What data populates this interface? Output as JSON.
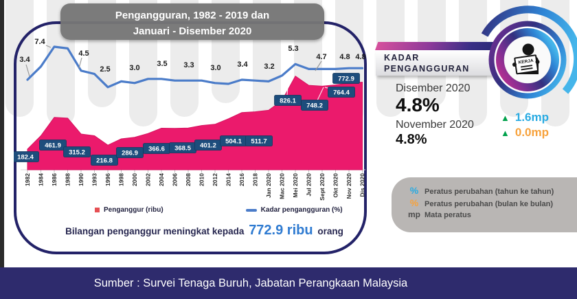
{
  "page": {
    "title_banner": {
      "line1": "Pengangguran, 1982 - 2019 dan",
      "line2": "Januari - Disember 2020"
    },
    "source_bar": "Sumber : Survei Tenaga Buruh, Jabatan Perangkaan Malaysia"
  },
  "chart_data": {
    "type": "combo",
    "subtypes": [
      "area",
      "line"
    ],
    "categories": [
      "1982",
      "1984",
      "1986",
      "1988",
      "1990",
      "1993",
      "1996",
      "1998",
      "2000",
      "2002",
      "2004",
      "2006",
      "2008",
      "2010",
      "2012",
      "2014",
      "2016",
      "2018",
      "Jan 2020",
      "Mac 2020",
      "Mei 2020",
      "Jul 2020",
      "Sept 2020",
      "Okt 2020",
      "Nov 2020",
      "Dis 2020"
    ],
    "series": [
      {
        "name": "Penganggur (ribu)",
        "type": "area",
        "color": "#eb1a6c",
        "values": [
          182.4,
          300,
          461.9,
          455,
          315.2,
          300,
          216.8,
          273,
          286.9,
          320,
          366.6,
          365,
          368.5,
          390,
          401.2,
          450,
          504.1,
          511.7,
          525,
          610,
          826.1,
          745,
          737,
          748.2,
          764.4,
          772.9
        ]
      },
      {
        "name": "Kadar pengangguran (%)",
        "type": "line",
        "color": "#4b7cc9",
        "values": [
          3.4,
          5.0,
          7.4,
          7.2,
          4.5,
          4.1,
          2.5,
          3.2,
          3.0,
          3.5,
          3.5,
          3.3,
          3.3,
          3.3,
          3.0,
          2.9,
          3.4,
          3.3,
          3.2,
          3.9,
          5.3,
          4.7,
          4.7,
          4.7,
          4.8,
          4.8
        ]
      }
    ],
    "area_labels": [
      {
        "i": 0,
        "text": "182.4"
      },
      {
        "i": 2,
        "text": "461.9"
      },
      {
        "i": 4,
        "text": "315.2"
      },
      {
        "i": 6,
        "text": "216.8"
      },
      {
        "i": 8,
        "text": "286.9"
      },
      {
        "i": 10,
        "text": "366.6"
      },
      {
        "i": 12,
        "text": "368.5"
      },
      {
        "i": 14,
        "text": "401.2"
      },
      {
        "i": 16,
        "text": "504.1"
      },
      {
        "i": 17,
        "text": "511.7"
      },
      {
        "i": 20,
        "text": "826.1"
      },
      {
        "i": 23,
        "text": "748.2"
      },
      {
        "i": 24,
        "text": "764.4"
      },
      {
        "i": 25,
        "text": "772.9"
      }
    ],
    "rate_labels": [
      {
        "i": 0,
        "text": "3.4"
      },
      {
        "i": 2,
        "text": "7.4"
      },
      {
        "i": 4,
        "text": "4.5"
      },
      {
        "i": 6,
        "text": "2.5"
      },
      {
        "i": 8,
        "text": "3.0"
      },
      {
        "i": 10,
        "text": "3.5"
      },
      {
        "i": 12,
        "text": "3.3"
      },
      {
        "i": 14,
        "text": "3.0"
      },
      {
        "i": 16,
        "text": "3.4"
      },
      {
        "i": 18,
        "text": "3.2"
      },
      {
        "i": 20,
        "text": "5.3"
      },
      {
        "i": 22,
        "text": "4.7"
      },
      {
        "i": 24,
        "text": "4.8"
      },
      {
        "i": 25,
        "text": "4.8"
      }
    ],
    "legend_position": "bottom",
    "grid": false,
    "y_axes_hidden": true
  },
  "chart_footer": {
    "prefix": "Bilangan penganggur meningkat kepada",
    "highlight": "772.9 ribu",
    "suffix": "orang"
  },
  "right_panel": {
    "heading_line1": "KADAR",
    "heading_line2": "PENGANGGURAN",
    "badge_label": "KERJA",
    "stats": [
      {
        "period": "Disember 2020",
        "value": "4.8%"
      },
      {
        "period": "November 2020",
        "value": "4.8%"
      }
    ],
    "changes": [
      {
        "arrow": "▲",
        "text": "1.6mp",
        "color": "#29abe2"
      },
      {
        "arrow": "▲",
        "text": "0.0mp",
        "color": "#f7a23c"
      }
    ],
    "notes": [
      {
        "symbol": "%",
        "symbol_color": "#29abe2",
        "text": "Peratus perubahan (tahun ke tahun)"
      },
      {
        "symbol": "%",
        "symbol_color": "#f7a23c",
        "text": "Peratus perubahan (bulan ke bulan)"
      },
      {
        "symbol": "mp",
        "symbol_color": "#4a4a4a",
        "text": "Mata peratus"
      }
    ]
  },
  "colors": {
    "area_pink": "#eb1a6c",
    "line_blue": "#4b7cc9",
    "label_box": "#1d4d7c",
    "card_border": "#232268",
    "band_navy": "#2e2b6d",
    "accent_blue": "#29abe2",
    "accent_orange": "#f7a23c",
    "accent_green": "#00a14b",
    "highlight_blue": "#2f7bd1"
  }
}
